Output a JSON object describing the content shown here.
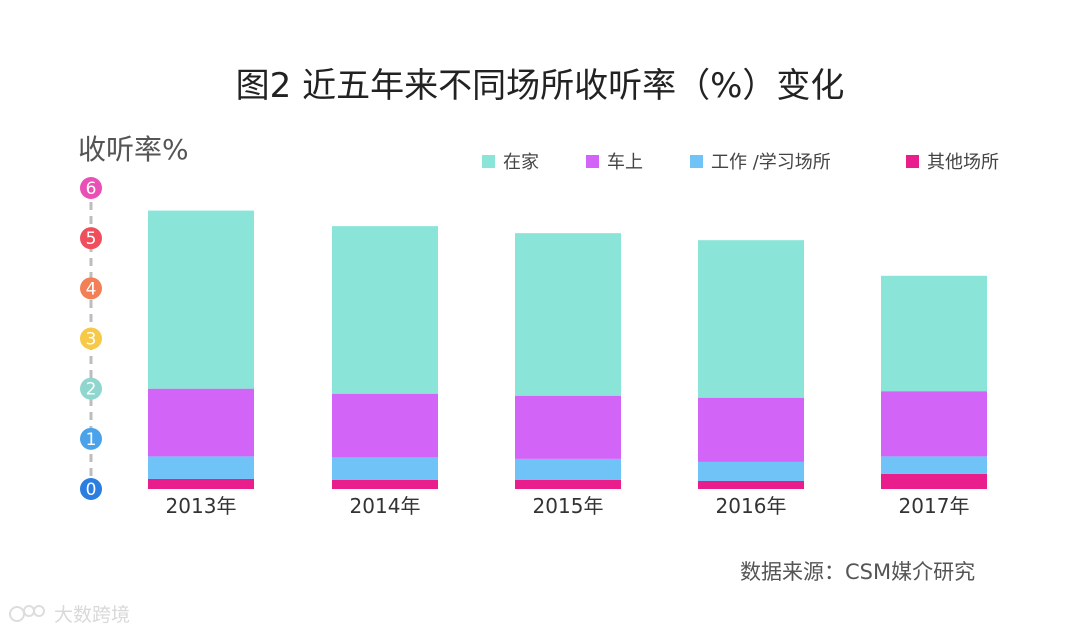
{
  "title": "图2 近五年来不同场所收听率（%）变化",
  "ylabel": "收听率%",
  "source": "数据来源：CSM媒介研究",
  "watermark": "大数跨境",
  "chart_data": {
    "type": "bar",
    "stacked": true,
    "categories": [
      "2013年",
      "2014年",
      "2015年",
      "2016年",
      "2017年"
    ],
    "series": [
      {
        "name": "其他场所",
        "color": "#e91e8c",
        "values": [
          0.2,
          0.18,
          0.18,
          0.16,
          0.3
        ]
      },
      {
        "name": "工作 /学习场所",
        "color": "#6fc3f7",
        "values": [
          0.45,
          0.45,
          0.42,
          0.38,
          0.35
        ]
      },
      {
        "name": "车上",
        "color": "#d264f7",
        "values": [
          1.35,
          1.27,
          1.26,
          1.28,
          1.3
        ]
      },
      {
        "name": "在家",
        "color": "#8ae5d8",
        "values": [
          3.55,
          3.34,
          3.24,
          3.14,
          2.3
        ]
      }
    ],
    "legend_order": [
      "在家",
      "车上",
      "工作 /学习场所",
      "其他场所"
    ],
    "ylim": [
      0,
      6
    ],
    "yticks": [
      0,
      1,
      2,
      3,
      4,
      5,
      6
    ],
    "ytick_colors": [
      "#2a7de1",
      "#4aa3ea",
      "#8fd6cf",
      "#f7c948",
      "#f27f55",
      "#ef4f5c",
      "#e94fb5"
    ],
    "grid": false,
    "legend_position": "top-right"
  }
}
